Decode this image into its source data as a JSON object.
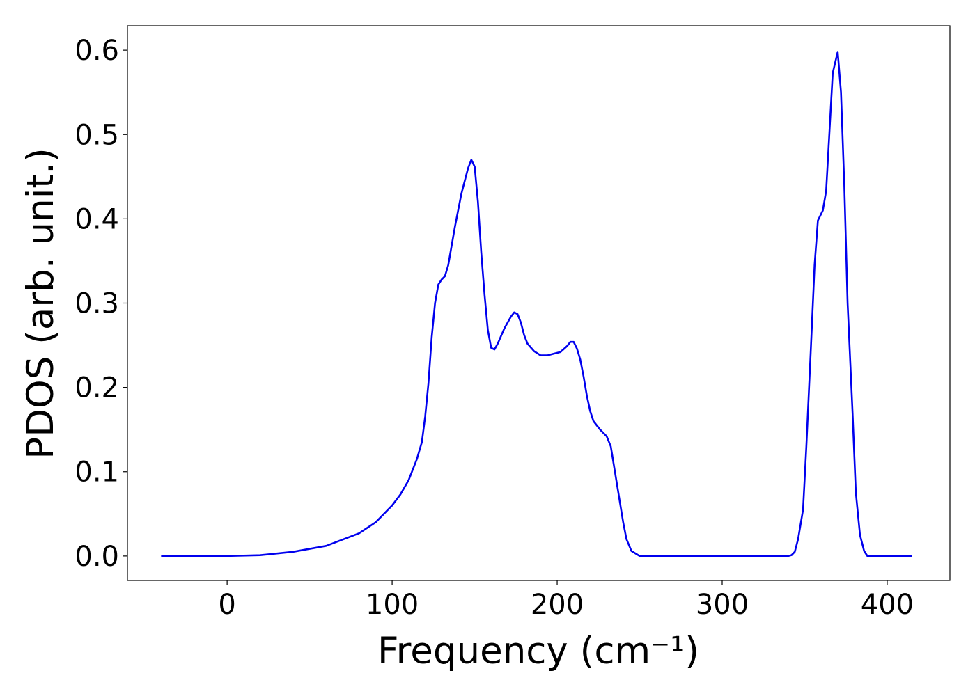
{
  "chart_data": {
    "type": "line",
    "x_label": "Frequency (cm⁻¹)",
    "y_label": "PDOS (arb. unit.)",
    "xlim": [
      -60.4,
      438
    ],
    "ylim": [
      -0.029,
      0.629
    ],
    "xticks": [
      0,
      100,
      200,
      300,
      400
    ],
    "yticks": [
      {
        "value": 0,
        "label": "0.0"
      },
      0.1,
      0.2,
      0.3,
      0.4,
      0.5,
      0.6
    ],
    "x": [
      -40,
      -20,
      0,
      20,
      40,
      60,
      80,
      90,
      100,
      105,
      110,
      115,
      118,
      120,
      122,
      124,
      126,
      128,
      130,
      132,
      134,
      138,
      142,
      146,
      148,
      150,
      152,
      154,
      156,
      158,
      160,
      162,
      164,
      168,
      172,
      174,
      176,
      178,
      180,
      182,
      186,
      190,
      194,
      198,
      202,
      206,
      208,
      210,
      212,
      214,
      216,
      218,
      220,
      222,
      226,
      230,
      232.5,
      235,
      237.5,
      240,
      242,
      245,
      250,
      300,
      340,
      342,
      344,
      346,
      349,
      351,
      353.6,
      356,
      358,
      361,
      363,
      367,
      370,
      372,
      374,
      376,
      379,
      381,
      383.5,
      386,
      388,
      400,
      415
    ],
    "series": [
      {
        "name": "PDOS",
        "color": "#0000ee",
        "values": [
          0,
          0,
          0,
          0.001,
          0.005,
          0.012,
          0.027,
          0.04,
          0.06,
          0.073,
          0.09,
          0.115,
          0.135,
          0.165,
          0.205,
          0.26,
          0.3,
          0.322,
          0.328,
          0.332,
          0.345,
          0.39,
          0.43,
          0.46,
          0.47,
          0.462,
          0.42,
          0.36,
          0.31,
          0.268,
          0.247,
          0.245,
          0.252,
          0.27,
          0.284,
          0.289,
          0.287,
          0.277,
          0.262,
          0.252,
          0.243,
          0.238,
          0.238,
          0.24,
          0.242,
          0.249,
          0.254,
          0.254,
          0.246,
          0.233,
          0.213,
          0.19,
          0.172,
          0.16,
          0.15,
          0.142,
          0.13,
          0.1,
          0.07,
          0.04,
          0.02,
          0.006,
          0,
          0,
          0,
          0.001,
          0.005,
          0.02,
          0.055,
          0.13,
          0.24,
          0.345,
          0.398,
          0.41,
          0.433,
          0.573,
          0.598,
          0.55,
          0.44,
          0.3,
          0.17,
          0.075,
          0.025,
          0.006,
          0,
          0,
          0
        ]
      }
    ]
  }
}
